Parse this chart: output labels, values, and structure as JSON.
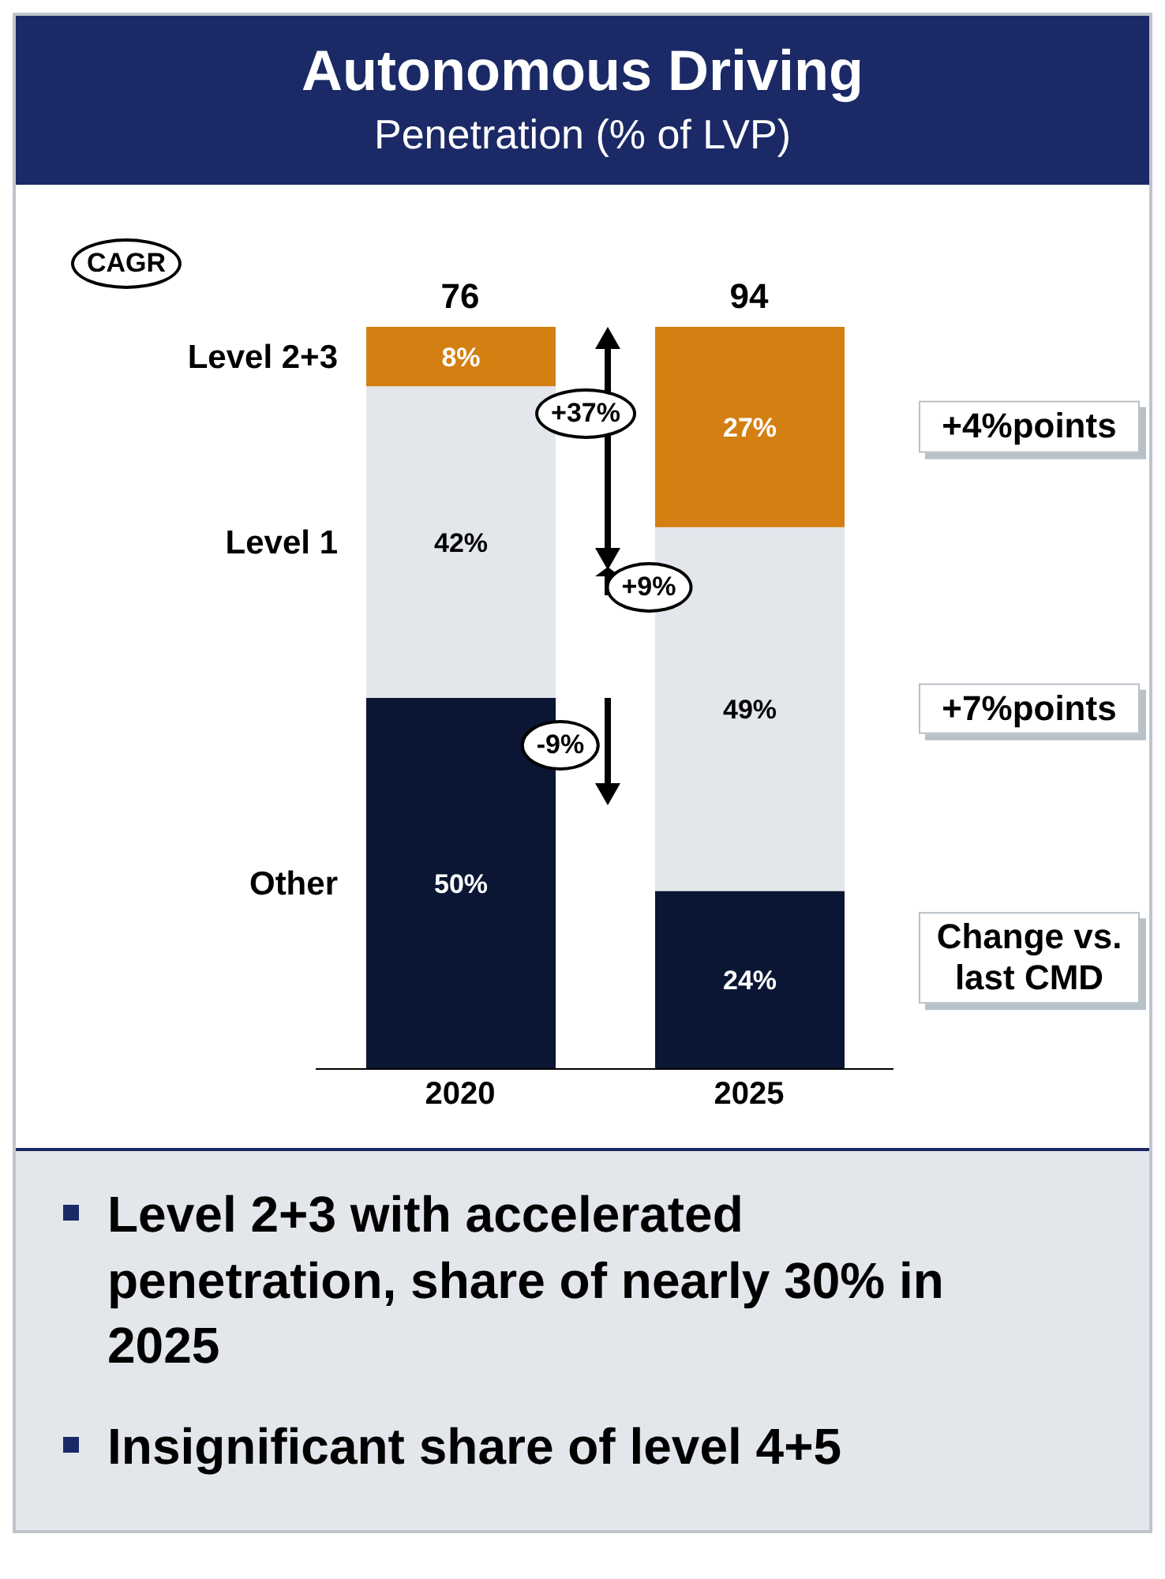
{
  "chart_data": {
    "type": "bar",
    "title": "Autonomous Driving",
    "subtitle": "Penetration (% of LVP)",
    "categories": [
      "2020",
      "2025"
    ],
    "stacked": true,
    "series": [
      {
        "name": "Other",
        "color": "#0a1633",
        "values": [
          50,
          24
        ],
        "value_labels": [
          "50%",
          "24%"
        ]
      },
      {
        "name": "Level 1",
        "color": "#e3e6ea",
        "values": [
          42,
          49
        ],
        "value_labels": [
          "42%",
          "49%"
        ]
      },
      {
        "name": "Level 2+3",
        "color": "#d47f12",
        "values": [
          8,
          27
        ],
        "value_labels": [
          "8%",
          "27%"
        ]
      }
    ],
    "annotations": [
      "CAGR",
      "+37%",
      "+9%",
      "-9%",
      "+4%points",
      "+7%points",
      "Change vs. last CMD",
      "Level 2+3 with accelerated penetration, share of nearly 30% in 2025",
      "Insignificant share of level 4+5",
      {
        "text": "76",
        "x": "2020",
        "y": 100
      },
      {
        "text": "94",
        "x": "2025",
        "y": 100
      }
    ]
  }
}
